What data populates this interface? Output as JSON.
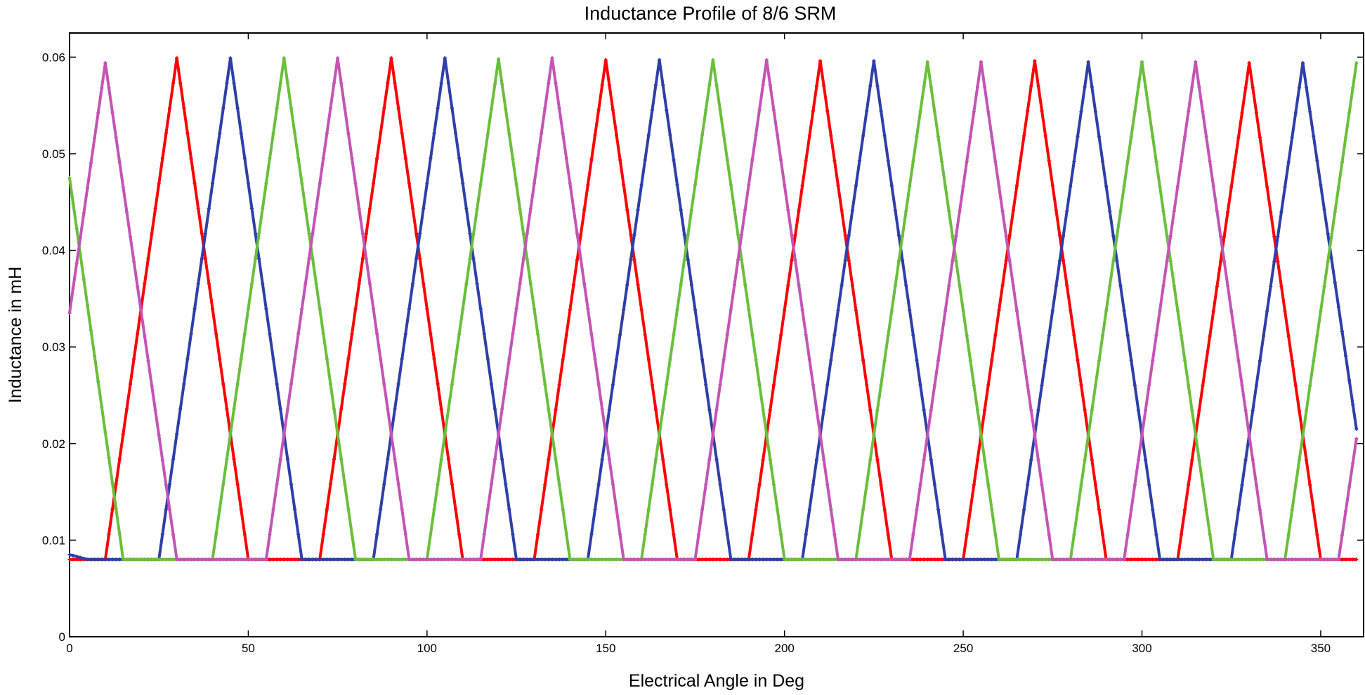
{
  "chart_data": {
    "type": "line",
    "title": "Inductance Profile of 8/6 SRM",
    "xlabel": "Electrical Angle in Deg",
    "ylabel": "Inductance in mH",
    "xlim": [
      0,
      362
    ],
    "ylim": [
      0,
      0.0625
    ],
    "xticks": [
      0,
      50,
      100,
      150,
      200,
      250,
      300,
      350
    ],
    "yticks": [
      0,
      0.01,
      0.02,
      0.03,
      0.04,
      0.05,
      0.06
    ],
    "ytick_labels": [
      "0",
      "0.01",
      "0.02",
      "0.03",
      "0.04",
      "0.05",
      "0.06"
    ],
    "grid": false,
    "legend": "none",
    "series": [
      {
        "color": "#ff0000",
        "x": [
          0,
          10,
          30,
          50,
          70,
          90,
          110,
          130,
          150,
          170,
          190,
          210,
          230,
          250,
          270,
          290,
          310,
          330,
          350,
          360
        ],
        "y": [
          0.008,
          0.008,
          0.0599,
          0.008,
          0.008,
          0.0599,
          0.008,
          0.008,
          0.0597,
          0.008,
          0.008,
          0.0596,
          0.008,
          0.008,
          0.0596,
          0.008,
          0.008,
          0.0594,
          0.008,
          0.008
        ]
      },
      {
        "color": "#2e3fa8",
        "x": [
          0,
          5,
          25,
          45,
          65,
          85,
          105,
          125,
          145,
          165,
          185,
          205,
          225,
          245,
          265,
          285,
          305,
          325,
          345,
          360
        ],
        "y": [
          0.0085,
          0.008,
          0.008,
          0.0599,
          0.008,
          0.008,
          0.0599,
          0.008,
          0.008,
          0.0597,
          0.008,
          0.008,
          0.0596,
          0.008,
          0.008,
          0.0595,
          0.008,
          0.008,
          0.0594,
          0.0215
        ]
      },
      {
        "color": "#6abf3c",
        "x": [
          0,
          15,
          40,
          60,
          80,
          100,
          120,
          140,
          160,
          180,
          200,
          220,
          240,
          260,
          280,
          300,
          320,
          340,
          360
        ],
        "y": [
          0.0475,
          0.008,
          0.008,
          0.0599,
          0.008,
          0.008,
          0.0598,
          0.008,
          0.008,
          0.0597,
          0.008,
          0.008,
          0.0595,
          0.008,
          0.008,
          0.0595,
          0.008,
          0.008,
          0.0594
        ]
      },
      {
        "color": "#c454b4",
        "x": [
          0,
          10,
          30,
          55,
          75,
          95,
          115,
          135,
          155,
          175,
          195,
          215,
          235,
          255,
          275,
          295,
          315,
          335,
          355,
          360
        ],
        "y": [
          0.0335,
          0.0594,
          0.008,
          0.008,
          0.0599,
          0.008,
          0.008,
          0.0599,
          0.008,
          0.008,
          0.0597,
          0.008,
          0.008,
          0.0595,
          0.008,
          0.008,
          0.0595,
          0.008,
          0.008,
          0.0205
        ]
      }
    ]
  }
}
